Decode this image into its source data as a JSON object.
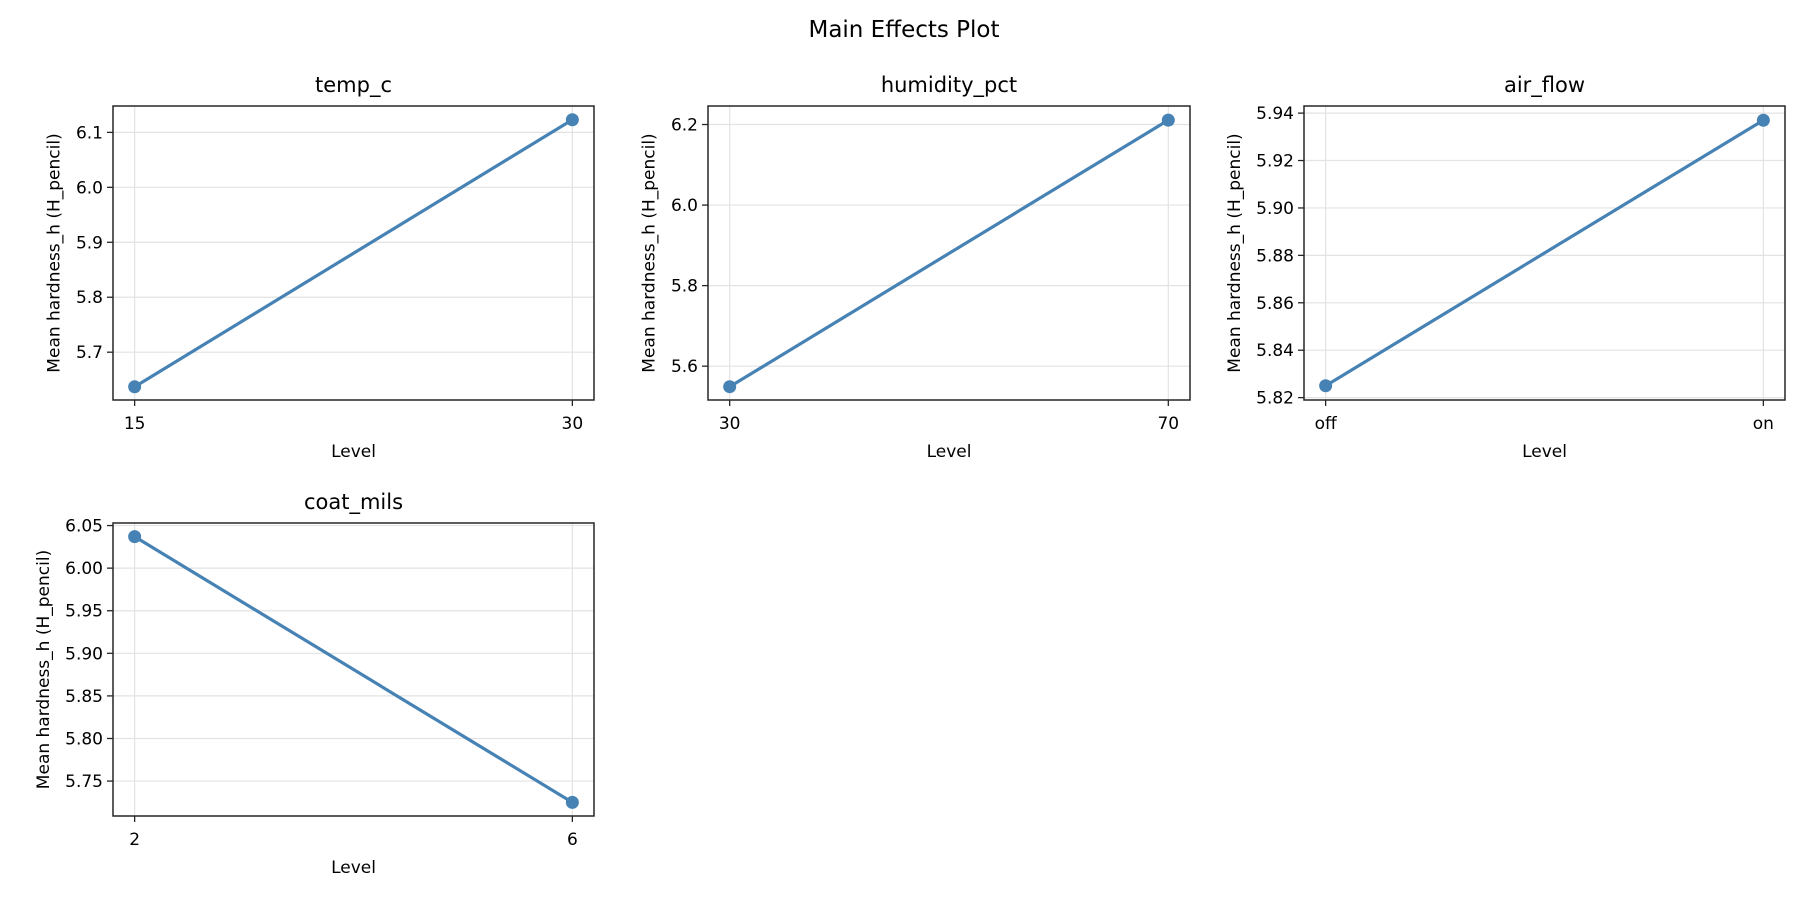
{
  "chart_data": {
    "type": "line",
    "title": "Main Effects Plot",
    "line_color": "#4682b4",
    "grid": true,
    "legend": null,
    "panels": [
      {
        "title": "temp_c",
        "xlabel": "Level",
        "ylabel": "Mean hardness_h (H_pencil)",
        "categories": [
          "15",
          "30"
        ],
        "values": [
          5.637,
          6.123
        ],
        "ylim": [
          5.613,
          6.148
        ],
        "yticks": [
          5.7,
          5.8,
          5.9,
          6.0,
          6.1
        ],
        "ytick_labels": [
          "5.7",
          "5.8",
          "5.9",
          "6.0",
          "6.1"
        ]
      },
      {
        "title": "humidity_pct",
        "xlabel": "Level",
        "ylabel": "Mean hardness_h (H_pencil)",
        "categories": [
          "30",
          "70"
        ],
        "values": [
          5.549,
          6.211
        ],
        "ylim": [
          5.516,
          6.246
        ],
        "yticks": [
          5.6,
          5.8,
          6.0,
          6.2
        ],
        "ytick_labels": [
          "5.6",
          "5.8",
          "6.0",
          "6.2"
        ]
      },
      {
        "title": "air_flow",
        "xlabel": "Level",
        "ylabel": "Mean hardness_h (H_pencil)",
        "categories": [
          "off",
          "on"
        ],
        "values": [
          5.825,
          5.937
        ],
        "ylim": [
          5.819,
          5.943
        ],
        "yticks": [
          5.82,
          5.84,
          5.86,
          5.88,
          5.9,
          5.92,
          5.94
        ],
        "ytick_labels": [
          "5.82",
          "5.84",
          "5.86",
          "5.88",
          "5.90",
          "5.92",
          "5.94"
        ]
      },
      {
        "title": "coat_mils",
        "xlabel": "Level",
        "ylabel": "Mean hardness_h (H_pencil)",
        "categories": [
          "2",
          "6"
        ],
        "values": [
          6.037,
          5.725
        ],
        "ylim": [
          5.709,
          6.053
        ],
        "yticks": [
          5.75,
          5.8,
          5.85,
          5.9,
          5.95,
          6.0,
          6.05
        ],
        "ytick_labels": [
          "5.75",
          "5.80",
          "5.85",
          "5.90",
          "5.95",
          "6.00",
          "6.05"
        ]
      }
    ]
  }
}
